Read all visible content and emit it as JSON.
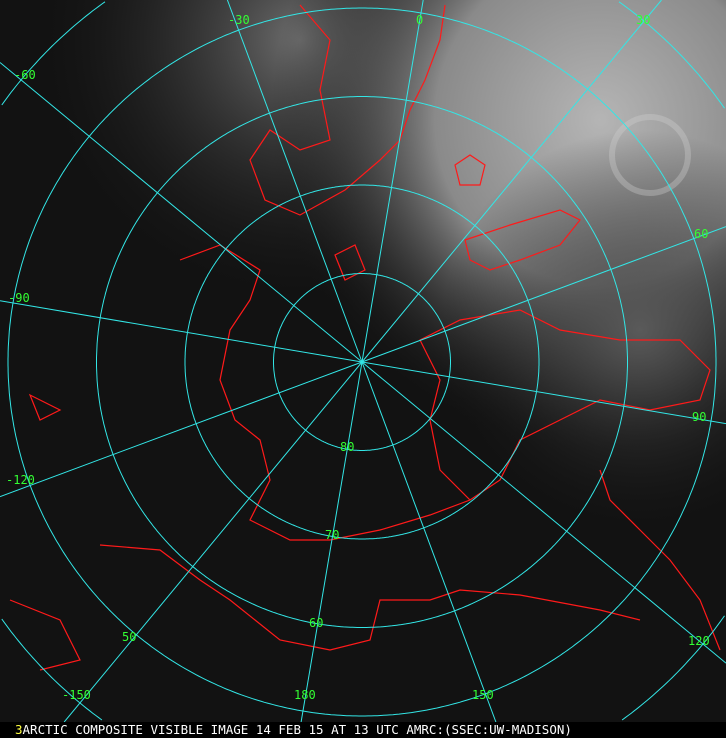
{
  "caption": {
    "frame_number": "3",
    "text": "ARCTIC COMPOSITE VISIBLE IMAGE 14 FEB 15 AT 13 UTC AMRC:(SSEC:UW-MADISON)"
  },
  "map": {
    "projection": "polar stereographic, north pole",
    "graticule_color": "#33e6e6",
    "coastline_color": "#ff1a1a",
    "label_color": "#33ff33",
    "latitudes": [
      80,
      70,
      60,
      50,
      40
    ],
    "latitude_labels": [
      "80",
      "70",
      "60",
      "50"
    ],
    "meridians": [
      -150,
      -120,
      -90,
      -60,
      -30,
      0,
      30,
      60,
      90,
      120,
      150,
      180
    ],
    "meridian_labels": [
      "-150",
      "-120",
      "-90",
      "-60",
      "-30",
      "0",
      "30",
      "60",
      "90",
      "120",
      "150",
      "180"
    ]
  }
}
